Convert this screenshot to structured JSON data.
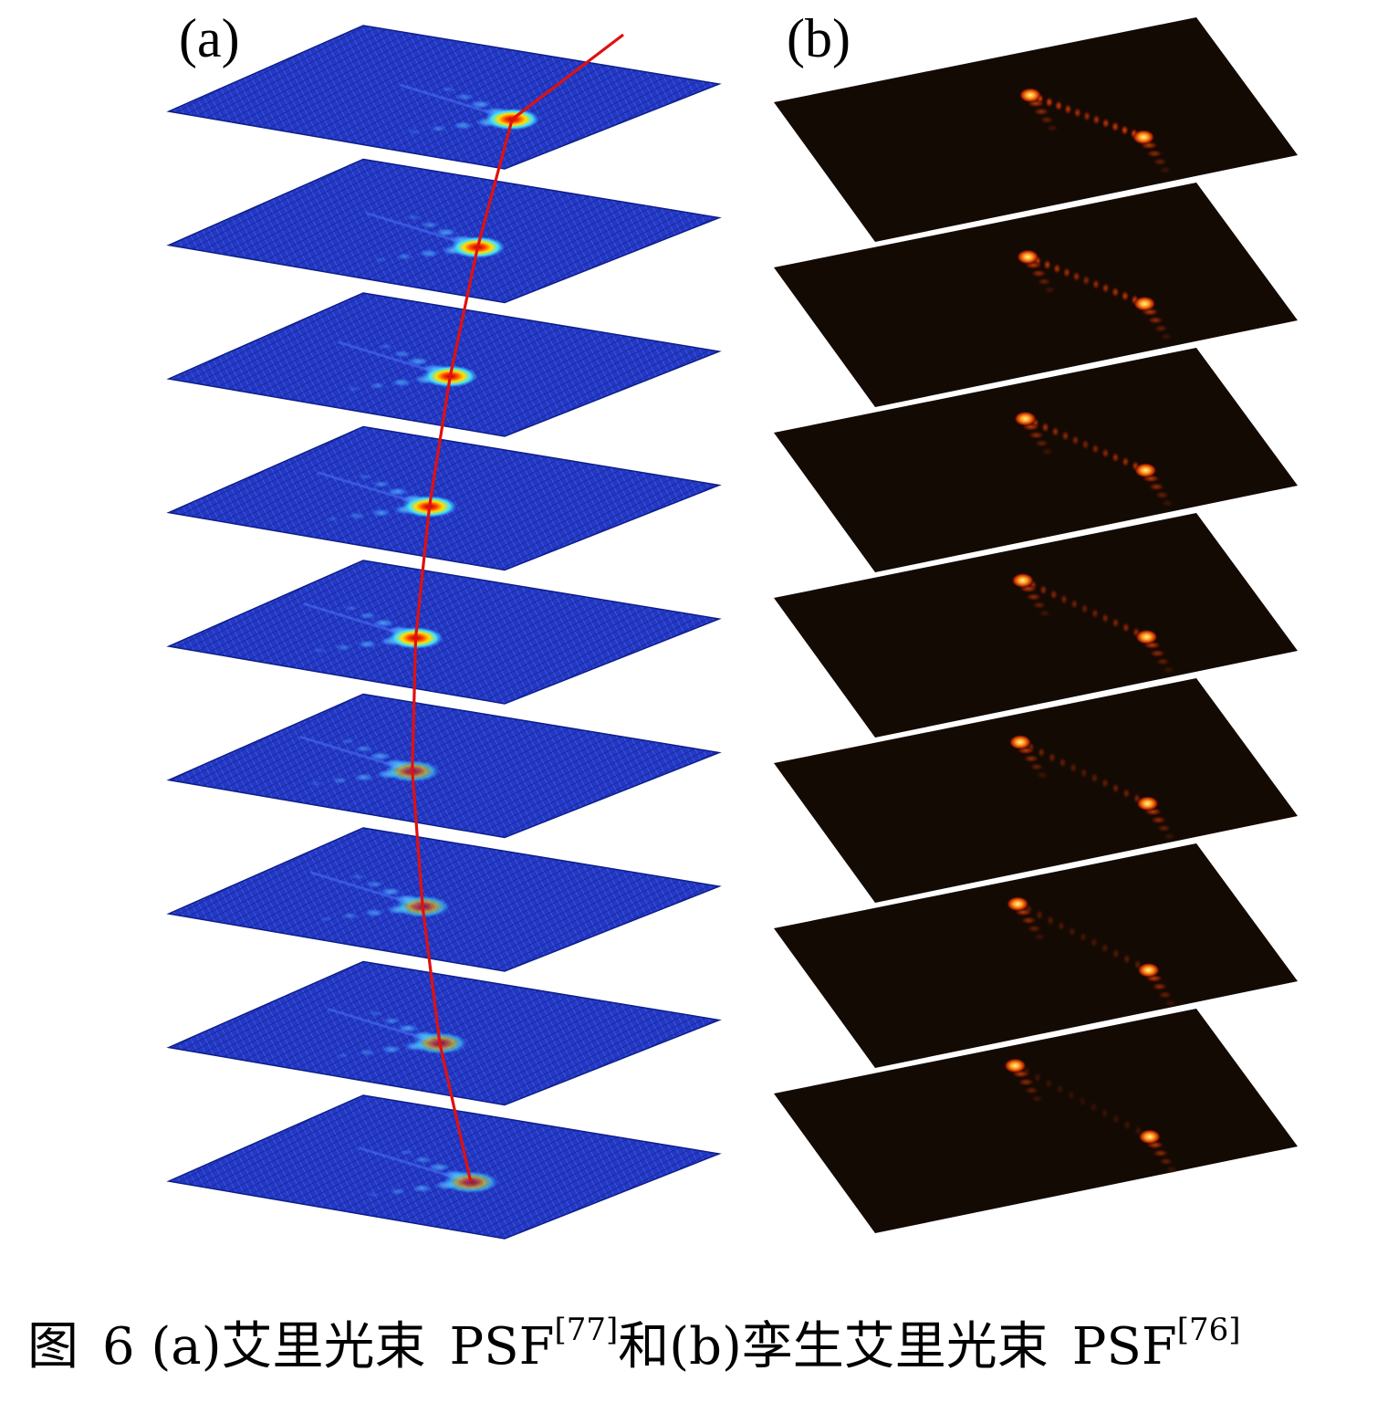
{
  "panels": {
    "a": {
      "label": "(a)",
      "slice_count": 9,
      "colors": {
        "plane": "#1f33b8",
        "plane_edge": "#0e1e8a",
        "glow": "#3aa8ff",
        "peak": "#ffd400",
        "path": "#e01010"
      }
    },
    "b": {
      "label": "(b)",
      "slice_count": 7,
      "colors": {
        "plane": "#140a04",
        "spot": "#ff8a00",
        "hot": "#ffe070"
      }
    }
  },
  "caption": {
    "fig_no": "图",
    "fig_num": "6",
    "part_a": "(a)艾里光束",
    "psf_a": "PSF",
    "ref_a": "[77]",
    "joiner": "和",
    "part_b": "(b)孪生艾里光束",
    "psf_b": "PSF",
    "ref_b": "[76]"
  }
}
